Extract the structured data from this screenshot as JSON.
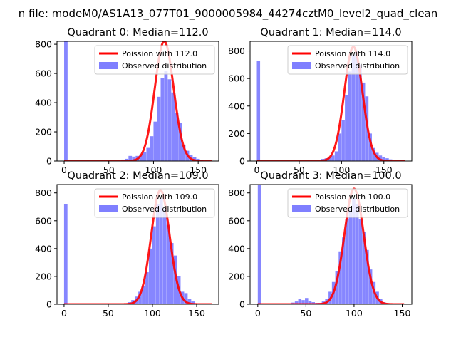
{
  "suptitle": "n file: modeM0/AS1A13_077T01_9000005984_44274cztM0_level2_quad_clean",
  "colors": {
    "observed": "#7f7fff",
    "poisson": "#ff0000",
    "axis": "#000000"
  },
  "chart_data": [
    {
      "type": "histogram+line",
      "title": "Quadrant 0: Median=112.0",
      "median": 112.0,
      "xlim": [
        -8,
        173
      ],
      "ylim": [
        0,
        820
      ],
      "xticks": [
        0,
        50,
        100,
        150
      ],
      "yticks": [
        0,
        200,
        400,
        600,
        800
      ],
      "legend": {
        "placement": "top-right",
        "entries": [
          "Poission with 112.0",
          "Observed distribution"
        ]
      },
      "bin_width": 4,
      "bins": [
        [
          0,
          820
        ],
        [
          64,
          10
        ],
        [
          68,
          15
        ],
        [
          72,
          35
        ],
        [
          76,
          30
        ],
        [
          80,
          35
        ],
        [
          84,
          45
        ],
        [
          88,
          60
        ],
        [
          92,
          90
        ],
        [
          96,
          170
        ],
        [
          100,
          270
        ],
        [
          104,
          440
        ],
        [
          108,
          570
        ],
        [
          112,
          620
        ],
        [
          116,
          560
        ],
        [
          120,
          470
        ],
        [
          124,
          330
        ],
        [
          128,
          260
        ],
        [
          132,
          110
        ],
        [
          136,
          70
        ],
        [
          140,
          40
        ],
        [
          144,
          25
        ],
        [
          148,
          15
        ],
        [
          152,
          8
        ]
      ],
      "poisson": {
        "mu": 112.0,
        "peak": 820,
        "sigma": 10.6,
        "range": [
          0,
          165
        ]
      }
    },
    {
      "type": "histogram+line",
      "title": "Quadrant 1: Median=114.0",
      "median": 114.0,
      "xlim": [
        -8,
        183
      ],
      "ylim": [
        0,
        870
      ],
      "xticks": [
        0,
        50,
        100,
        150
      ],
      "yticks": [
        0,
        200,
        400,
        600,
        800
      ],
      "legend": {
        "placement": "top-right",
        "entries": [
          "Poission with 114.0",
          "Observed distribution"
        ]
      },
      "bin_width": 4,
      "bins": [
        [
          0,
          730
        ],
        [
          76,
          15
        ],
        [
          80,
          20
        ],
        [
          84,
          30
        ],
        [
          88,
          40
        ],
        [
          92,
          70
        ],
        [
          96,
          200
        ],
        [
          100,
          300
        ],
        [
          104,
          480
        ],
        [
          108,
          650
        ],
        [
          112,
          770
        ],
        [
          116,
          800
        ],
        [
          120,
          700
        ],
        [
          124,
          570
        ],
        [
          128,
          470
        ],
        [
          132,
          200
        ],
        [
          136,
          95
        ],
        [
          140,
          60
        ],
        [
          144,
          40
        ],
        [
          148,
          30
        ],
        [
          152,
          20
        ],
        [
          156,
          12
        ]
      ],
      "poisson": {
        "mu": 114.0,
        "peak": 830,
        "sigma": 10.7,
        "range": [
          0,
          175
        ]
      }
    },
    {
      "type": "histogram+line",
      "title": "Quadrant 2: Median=109.0",
      "median": 109.0,
      "xlim": [
        -8,
        175
      ],
      "ylim": [
        0,
        860
      ],
      "xticks": [
        0,
        50,
        100,
        150
      ],
      "yticks": [
        0,
        200,
        400,
        600,
        800
      ],
      "legend": {
        "placement": "top-right",
        "entries": [
          "Poission with 109.0",
          "Observed distribution"
        ]
      },
      "bin_width": 4,
      "bins": [
        [
          0,
          720
        ],
        [
          72,
          15
        ],
        [
          76,
          30
        ],
        [
          80,
          55
        ],
        [
          84,
          90
        ],
        [
          88,
          130
        ],
        [
          92,
          230
        ],
        [
          96,
          400
        ],
        [
          100,
          560
        ],
        [
          104,
          720
        ],
        [
          108,
          760
        ],
        [
          112,
          680
        ],
        [
          116,
          570
        ],
        [
          120,
          440
        ],
        [
          124,
          350
        ],
        [
          128,
          200
        ],
        [
          132,
          90
        ],
        [
          136,
          80
        ],
        [
          140,
          40
        ],
        [
          144,
          20
        ]
      ],
      "poisson": {
        "mu": 109.0,
        "peak": 820,
        "sigma": 10.4,
        "range": [
          0,
          167
        ]
      }
    },
    {
      "type": "histogram+line",
      "title": "Quadrant 3: Median=100.0",
      "median": 100.0,
      "xlim": [
        -8,
        160
      ],
      "ylim": [
        0,
        860
      ],
      "xticks": [
        0,
        50,
        100,
        150
      ],
      "yticks": [
        0,
        200,
        400,
        600,
        800
      ],
      "legend": {
        "placement": "top-right",
        "entries": [
          "Poission with 100.0",
          "Observed distribution"
        ]
      },
      "bin_width": 3.5,
      "bins": [
        [
          0,
          860
        ],
        [
          35,
          12
        ],
        [
          38.5,
          20
        ],
        [
          42,
          40
        ],
        [
          45.5,
          30
        ],
        [
          49,
          45
        ],
        [
          52.5,
          25
        ],
        [
          56,
          15
        ],
        [
          59.5,
          10
        ],
        [
          63,
          10
        ],
        [
          66.5,
          20
        ],
        [
          70,
          40
        ],
        [
          73.5,
          90
        ],
        [
          77,
          160
        ],
        [
          80.5,
          240
        ],
        [
          84,
          380
        ],
        [
          87.5,
          480
        ],
        [
          91,
          610
        ],
        [
          94.5,
          680
        ],
        [
          98,
          760
        ],
        [
          101.5,
          720
        ],
        [
          105,
          610
        ],
        [
          108.5,
          520
        ],
        [
          112,
          390
        ],
        [
          115.5,
          250
        ],
        [
          119,
          160
        ],
        [
          122.5,
          90
        ],
        [
          126,
          40
        ],
        [
          129.5,
          15
        ],
        [
          133,
          8
        ]
      ],
      "poisson": {
        "mu": 100.0,
        "peak": 830,
        "sigma": 10.0,
        "range": [
          0,
          152
        ]
      }
    }
  ]
}
